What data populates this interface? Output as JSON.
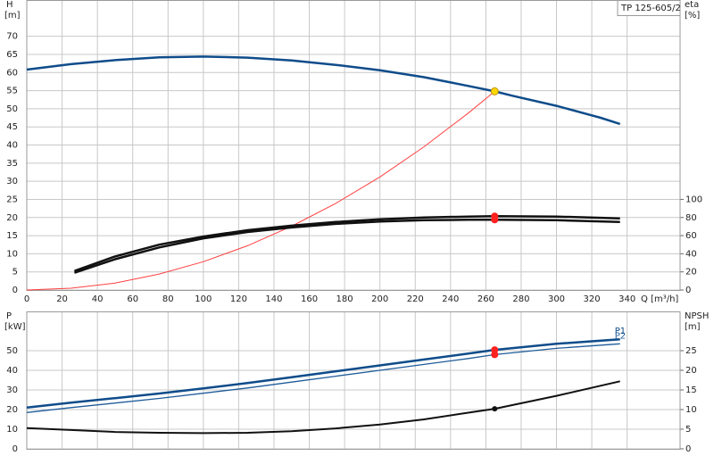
{
  "chart_data": [
    {
      "type": "line",
      "title": "TP 125-605/2",
      "ylabel": "H",
      "yunit": "[m]",
      "y2label": "eta",
      "y2unit": "[%]",
      "xlabel": "Q [m³/h]",
      "xlim": [
        0,
        370
      ],
      "xticks": [
        0,
        20,
        40,
        60,
        80,
        100,
        120,
        140,
        160,
        180,
        200,
        220,
        240,
        260,
        280,
        300,
        320,
        340
      ],
      "ylim": [
        0,
        80
      ],
      "yticks": [
        0,
        5,
        10,
        15,
        20,
        25,
        30,
        35,
        40,
        45,
        50,
        55,
        60,
        65,
        70
      ],
      "y2lim": [
        0,
        320
      ],
      "y2ticks": [
        0,
        20,
        40,
        60,
        80,
        100
      ],
      "grid": true,
      "series": [
        {
          "color": "#0f4c8a",
          "width": 2.5,
          "x": [
            0,
            25,
            50,
            75,
            100,
            125,
            150,
            175,
            200,
            225,
            250,
            265,
            275,
            300,
            325,
            336
          ],
          "values": [
            60.8,
            62.3,
            63.4,
            64.2,
            64.4,
            64.1,
            63.3,
            62.1,
            60.6,
            58.7,
            56.3,
            54.8,
            53.6,
            50.8,
            47.5,
            45.8
          ]
        },
        {
          "color": "#ff4040",
          "width": 1,
          "x": [
            0,
            25,
            50,
            75,
            100,
            125,
            150,
            175,
            200,
            225,
            250,
            265
          ],
          "values": [
            0,
            0.5,
            1.9,
            4.4,
            7.8,
            12.2,
            17.6,
            23.9,
            31.2,
            39.5,
            48.8,
            54.8
          ]
        },
        {
          "color": "#111111",
          "width": 2.5,
          "axis": "y2",
          "x": [
            27,
            50,
            75,
            100,
            125,
            150,
            175,
            200,
            225,
            250,
            265,
            300,
            336
          ],
          "values": [
            21,
            37,
            50,
            59,
            66,
            71,
            75,
            78,
            80,
            81,
            81.5,
            81,
            79
          ]
        },
        {
          "color": "#111111",
          "width": 2.5,
          "axis": "y2",
          "x": [
            27,
            50,
            75,
            100,
            125,
            150,
            175,
            200,
            225,
            250,
            265,
            300,
            336
          ],
          "values": [
            19,
            34,
            47,
            57,
            64,
            69,
            73,
            75.5,
            77,
            77.5,
            77.5,
            77,
            75
          ]
        },
        {
          "color": "#ffd700",
          "marker": true,
          "x": [
            265
          ],
          "values": [
            54.8
          ]
        },
        {
          "color": "#ff2020",
          "marker": true,
          "axis": "y2",
          "x": [
            265,
            265
          ],
          "values": [
            81.5,
            77.5
          ]
        }
      ]
    },
    {
      "type": "line",
      "ylabel": "P",
      "yunit": "[kW]",
      "y2label": "NPSH",
      "y2unit": "[m]",
      "xlim": [
        0,
        370
      ],
      "ylim": [
        0,
        70
      ],
      "yticks": [
        0,
        10,
        20,
        30,
        40,
        50
      ],
      "y2lim": [
        0,
        35
      ],
      "y2ticks": [
        0,
        5,
        10,
        15,
        20,
        25
      ],
      "grid": true,
      "series": [
        {
          "name": "P1",
          "color": "#0f4c8a",
          "width": 2.5,
          "x": [
            0,
            25,
            50,
            75,
            100,
            125,
            150,
            175,
            200,
            225,
            250,
            265,
            300,
            336
          ],
          "values": [
            21,
            23.5,
            25.8,
            28.2,
            30.8,
            33.5,
            36.5,
            39.5,
            42.5,
            45.5,
            48.5,
            50.4,
            53.5,
            55.8
          ]
        },
        {
          "name": "P2",
          "color": "#1f5c9a",
          "width": 1.3,
          "x": [
            0,
            25,
            50,
            75,
            100,
            125,
            150,
            175,
            200,
            225,
            250,
            265,
            300,
            336
          ],
          "values": [
            18.5,
            21,
            23.3,
            25.7,
            28.3,
            31,
            34,
            37,
            40,
            43,
            46,
            48,
            51.2,
            53.5
          ]
        },
        {
          "color": "#111111",
          "width": 2,
          "axis": "y2",
          "x": [
            0,
            25,
            50,
            75,
            100,
            125,
            150,
            175,
            200,
            225,
            250,
            265,
            300,
            336
          ],
          "values": [
            5.3,
            4.8,
            4.3,
            4.1,
            4.0,
            4.1,
            4.5,
            5.2,
            6.2,
            7.5,
            9.2,
            10.2,
            13.5,
            17.2
          ]
        },
        {
          "color": "#ff2020",
          "marker": true,
          "x": [
            265,
            265
          ],
          "values": [
            50.4,
            48
          ]
        },
        {
          "color": "#111111",
          "marker": true,
          "small": true,
          "axis": "y2",
          "x": [
            265
          ],
          "values": [
            10.2
          ]
        }
      ]
    }
  ]
}
